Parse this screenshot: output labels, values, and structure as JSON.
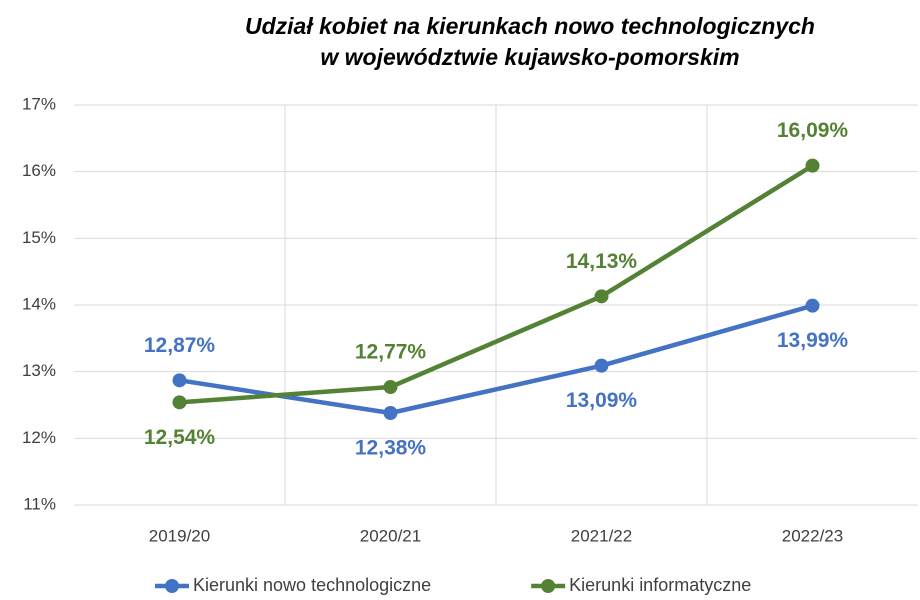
{
  "chart_data": {
    "type": "line",
    "title": [
      "Udział kobiet na kierunkach nowo technologicznych",
      "w województwie kujawsko-pomorskim"
    ],
    "categories": [
      "2019/20",
      "2020/21",
      "2021/22",
      "2022/23"
    ],
    "series": [
      {
        "name": "Kierunki nowo technologiczne",
        "color": "#4472c4",
        "values": [
          12.87,
          12.38,
          13.09,
          13.99
        ],
        "value_labels": [
          "12,87%",
          "12,38%",
          "13,09%",
          "13,99%"
        ]
      },
      {
        "name": "Kierunki informatyczne",
        "color": "#548235",
        "values": [
          12.54,
          12.77,
          14.13,
          16.09
        ],
        "value_labels": [
          "12,54%",
          "12,77%",
          "14,13%",
          "16,09%"
        ]
      }
    ],
    "ylim": [
      11,
      17
    ],
    "yticks": [
      {
        "value": 11,
        "label": "11%"
      },
      {
        "value": 12,
        "label": "12%"
      },
      {
        "value": 13,
        "label": "13%"
      },
      {
        "value": 14,
        "label": "14%"
      },
      {
        "value": 15,
        "label": "15%"
      },
      {
        "value": 16,
        "label": "16%"
      },
      {
        "value": 17,
        "label": "17%"
      }
    ],
    "grid": true,
    "legend": "bottom"
  }
}
